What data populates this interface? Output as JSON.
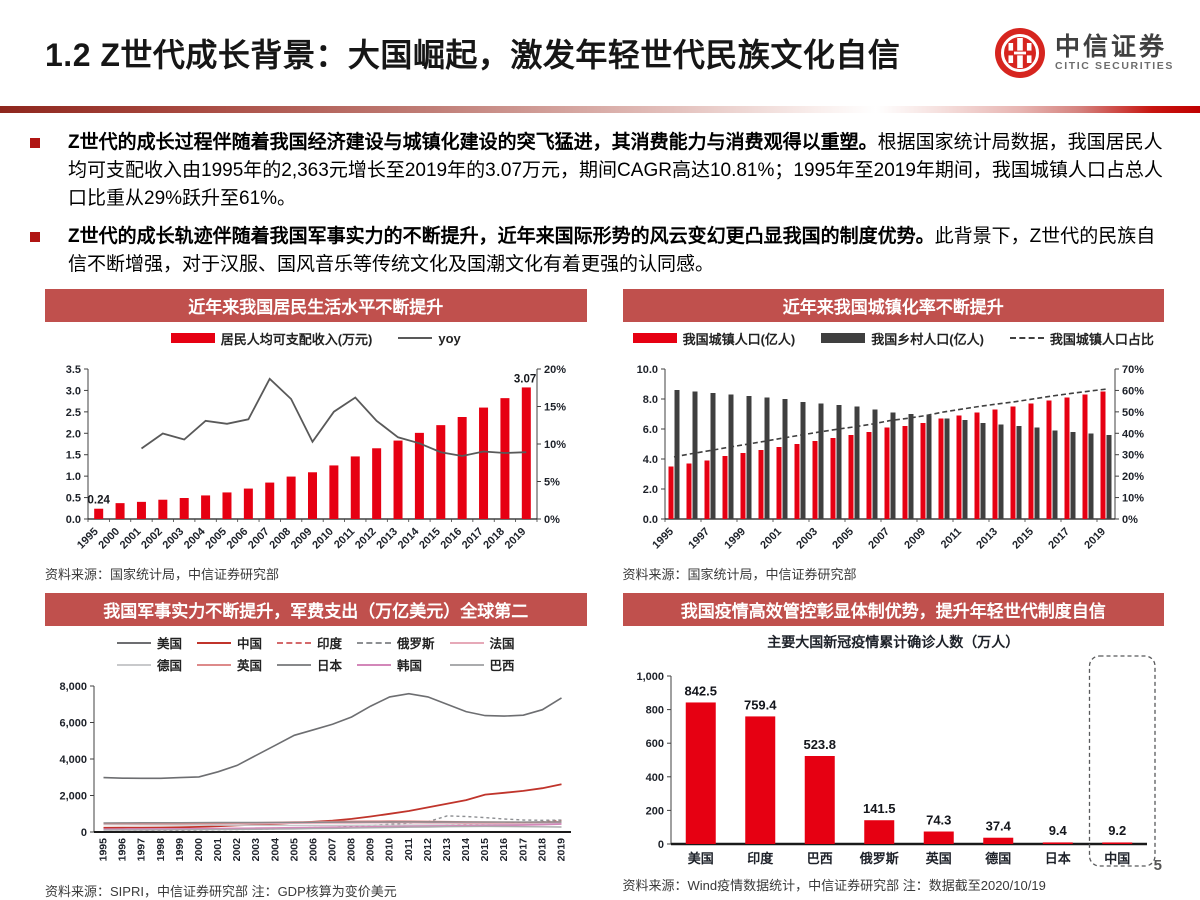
{
  "page": {
    "title": "1.2 Z世代成长背景：大国崛起，激发年轻世代民族文化自信",
    "page_number": "5",
    "logo": {
      "name": "中信证券",
      "sub": "CITIC SECURITIES"
    }
  },
  "bullets": [
    {
      "bold": "Z世代的成长过程伴随着我国经济建设与城镇化建设的突飞猛进，其消费能力与消费观得以重塑。",
      "rest": "根据国家统计局数据，我国居民人均可支配收入由1995年的2,363元增长至2019年的3.07万元，期间CAGR高达10.81%；1995年至2019年期间，我国城镇人口占总人口比重从29%跃升至61%。"
    },
    {
      "bold": "Z世代的成长轨迹伴随着我国军事实力的不断提升，近年来国际形势的风云变幻更凸显我国的制度优势。",
      "rest": "此背景下，Z世代的民族自信不断增强，对于汉服、国风音乐等传统文化及国潮文化有着更强的认同感。"
    }
  ],
  "panels": [
    {
      "header": "近年来我国居民生活水平不断提升",
      "source": "资料来源：国家统计局，中信证券研究部"
    },
    {
      "header": "近年来我国城镇化率不断提升",
      "source": "资料来源：国家统计局，中信证券研究部"
    },
    {
      "header": "我国军事实力不断提升，军费支出（万亿美元）全球第二",
      "source": "资料来源：SIPRI，中信证券研究部  注：GDP核算为变价美元"
    },
    {
      "header": "我国疫情高效管控彰显体制优势，提升年轻世代制度自信",
      "source": "资料来源：Wind疫情数据统计，中信证券研究部  注：数据截至2020/10/19"
    }
  ],
  "chart_data": [
    {
      "type": "combo-bar-line",
      "categories": [
        "1995",
        "2000",
        "2001",
        "2002",
        "2003",
        "2004",
        "2005",
        "2006",
        "2007",
        "2008",
        "2009",
        "2010",
        "2011",
        "2012",
        "2013",
        "2014",
        "2015",
        "2016",
        "2017",
        "2018",
        "2019"
      ],
      "bar": {
        "name": "居民人均可支配收入(万元)",
        "color": "#e60012",
        "values": [
          0.24,
          0.37,
          0.4,
          0.45,
          0.49,
          0.55,
          0.62,
          0.71,
          0.85,
          0.99,
          1.09,
          1.25,
          1.46,
          1.65,
          1.83,
          2.01,
          2.19,
          2.38,
          2.6,
          2.82,
          3.07
        ]
      },
      "line": {
        "name": "yoy",
        "color": "#595959",
        "values": [
          null,
          null,
          9.4,
          11.4,
          10.6,
          13.1,
          12.7,
          13.3,
          18.7,
          16.0,
          10.3,
          14.3,
          16.2,
          13.1,
          10.9,
          10.1,
          8.9,
          8.4,
          9.0,
          8.8,
          8.9
        ]
      },
      "yleft": {
        "min": 0,
        "max": 3.5,
        "step": 0.5,
        "decimals": 1
      },
      "yright": {
        "min": 0,
        "max": 20,
        "step": 5,
        "suffix": "%"
      },
      "annotations": [
        {
          "index": 0,
          "text": "0.24",
          "anchor": "middle"
        },
        {
          "index": 20,
          "text": "3.07",
          "anchor": "end",
          "dx": 10
        }
      ]
    },
    {
      "type": "grouped-bar-line",
      "categories": [
        "1995",
        "1996",
        "1997",
        "1998",
        "1999",
        "2000",
        "2001",
        "2002",
        "2003",
        "2004",
        "2005",
        "2006",
        "2007",
        "2008",
        "2009",
        "2010",
        "2011",
        "2012",
        "2013",
        "2014",
        "2015",
        "2016",
        "2017",
        "2018",
        "2019"
      ],
      "x_label_every": 2,
      "series": [
        {
          "name": "我国城镇人口(亿人)",
          "color": "#e60012",
          "values": [
            3.5,
            3.7,
            3.9,
            4.2,
            4.4,
            4.6,
            4.8,
            5.0,
            5.2,
            5.4,
            5.6,
            5.8,
            6.1,
            6.2,
            6.4,
            6.7,
            6.9,
            7.1,
            7.3,
            7.5,
            7.7,
            7.9,
            8.1,
            8.3,
            8.5
          ]
        },
        {
          "name": "我国乡村人口(亿人)",
          "color": "#3f3f3f",
          "values": [
            8.6,
            8.5,
            8.4,
            8.3,
            8.2,
            8.1,
            8.0,
            7.8,
            7.7,
            7.6,
            7.5,
            7.3,
            7.1,
            7.0,
            6.9,
            6.7,
            6.6,
            6.4,
            6.3,
            6.2,
            6.1,
            5.9,
            5.8,
            5.7,
            5.6
          ]
        }
      ],
      "line": {
        "name": "我国城镇人口占比",
        "color": "#404040",
        "dash": "5,3",
        "values": [
          29.0,
          30.5,
          31.9,
          33.4,
          34.8,
          36.2,
          37.7,
          39.1,
          40.5,
          41.8,
          43.0,
          44.3,
          45.9,
          47.0,
          48.3,
          50.0,
          51.3,
          52.6,
          53.7,
          54.8,
          56.1,
          57.4,
          58.5,
          59.6,
          60.6
        ]
      },
      "yleft": {
        "min": 0,
        "max": 10,
        "step": 2,
        "decimals": 1
      },
      "yright": {
        "min": 0,
        "max": 70,
        "step": 10,
        "suffix": "%"
      }
    },
    {
      "type": "multi-line",
      "categories": [
        "1995",
        "1996",
        "1997",
        "1998",
        "1999",
        "2000",
        "2001",
        "2002",
        "2003",
        "2004",
        "2005",
        "2006",
        "2007",
        "2008",
        "2009",
        "2010",
        "2011",
        "2012",
        "2013",
        "2014",
        "2015",
        "2016",
        "2017",
        "2018",
        "2019"
      ],
      "series": [
        {
          "name": "美国",
          "color": "#6d6e71",
          "width": 1.6,
          "values": [
            2980,
            2950,
            2940,
            2940,
            2980,
            3020,
            3300,
            3650,
            4200,
            4750,
            5300,
            5600,
            5900,
            6300,
            6900,
            7400,
            7580,
            7400,
            7000,
            6600,
            6380,
            6350,
            6400,
            6700,
            7350
          ]
        },
        {
          "name": "中国",
          "color": "#c0342b",
          "width": 1.8,
          "values": [
            230,
            235,
            240,
            245,
            255,
            280,
            320,
            360,
            400,
            450,
            500,
            560,
            620,
            720,
            850,
            1000,
            1150,
            1350,
            1550,
            1750,
            2050,
            2150,
            2250,
            2400,
            2620
          ]
        },
        {
          "name": "印度",
          "color": "#d4696b",
          "dash": "3,3",
          "values": [
            140,
            145,
            150,
            155,
            160,
            165,
            175,
            185,
            200,
            215,
            230,
            240,
            250,
            270,
            300,
            320,
            340,
            360,
            380,
            400,
            430,
            460,
            500,
            560,
            640
          ]
        },
        {
          "name": "俄罗斯",
          "color": "#8d8f92",
          "dash": "3,3",
          "values": [
            120,
            110,
            100,
            90,
            95,
            105,
            120,
            135,
            150,
            170,
            190,
            220,
            260,
            310,
            360,
            420,
            480,
            560,
            880,
            850,
            790,
            710,
            660,
            640,
            650
          ]
        },
        {
          "name": "法国",
          "color": "#e6a9b8",
          "values": [
            480,
            470,
            465,
            460,
            455,
            450,
            450,
            455,
            460,
            470,
            475,
            480,
            490,
            495,
            505,
            510,
            505,
            495,
            485,
            475,
            465,
            460,
            465,
            475,
            500
          ]
        },
        {
          "name": "德国",
          "color": "#c8c9cb",
          "values": [
            410,
            400,
            395,
            390,
            385,
            380,
            375,
            370,
            365,
            362,
            360,
            358,
            360,
            365,
            370,
            375,
            378,
            380,
            385,
            390,
            395,
            400,
            420,
            440,
            465
          ]
        },
        {
          "name": "英国",
          "color": "#dd8a8a",
          "values": [
            460,
            455,
            450,
            448,
            450,
            460,
            475,
            490,
            510,
            530,
            550,
            560,
            575,
            590,
            600,
            605,
            595,
            585,
            570,
            560,
            548,
            540,
            535,
            545,
            560
          ]
        },
        {
          "name": "日本",
          "color": "#87888a",
          "values": [
            500,
            505,
            508,
            510,
            512,
            515,
            518,
            520,
            522,
            525,
            528,
            530,
            535,
            540,
            545,
            550,
            552,
            550,
            548,
            545,
            542,
            540,
            542,
            548,
            555
          ]
        },
        {
          "name": "韩国",
          "color": "#d387b9",
          "width": 1.8,
          "values": [
            150,
            158,
            162,
            168,
            172,
            178,
            188,
            198,
            208,
            218,
            230,
            242,
            255,
            268,
            280,
            292,
            305,
            318,
            330,
            342,
            355,
            368,
            382,
            405,
            440
          ]
        },
        {
          "name": "巴西",
          "color": "#aaabad",
          "values": [
            105,
            108,
            112,
            116,
            120,
            126,
            132,
            140,
            150,
            160,
            172,
            184,
            196,
            212,
            228,
            246,
            262,
            276,
            288,
            298,
            306,
            300,
            292,
            284,
            276
          ]
        }
      ],
      "yleft": {
        "min": 0,
        "max": 8000,
        "step": 2000,
        "comma": true
      },
      "legend_rows": 2
    },
    {
      "type": "bar-labeled",
      "title": "主要大国新冠疫情累计确诊人数（万人）",
      "categories": [
        "美国",
        "印度",
        "巴西",
        "俄罗斯",
        "英国",
        "德国",
        "日本",
        "中国"
      ],
      "values": [
        842.5,
        759.4,
        523.8,
        141.5,
        74.3,
        37.4,
        9.4,
        9.2
      ],
      "color": "#e60012",
      "yleft": {
        "min": 0,
        "max": 1000,
        "step": 200,
        "comma": true
      },
      "highlight_index": 7
    }
  ]
}
